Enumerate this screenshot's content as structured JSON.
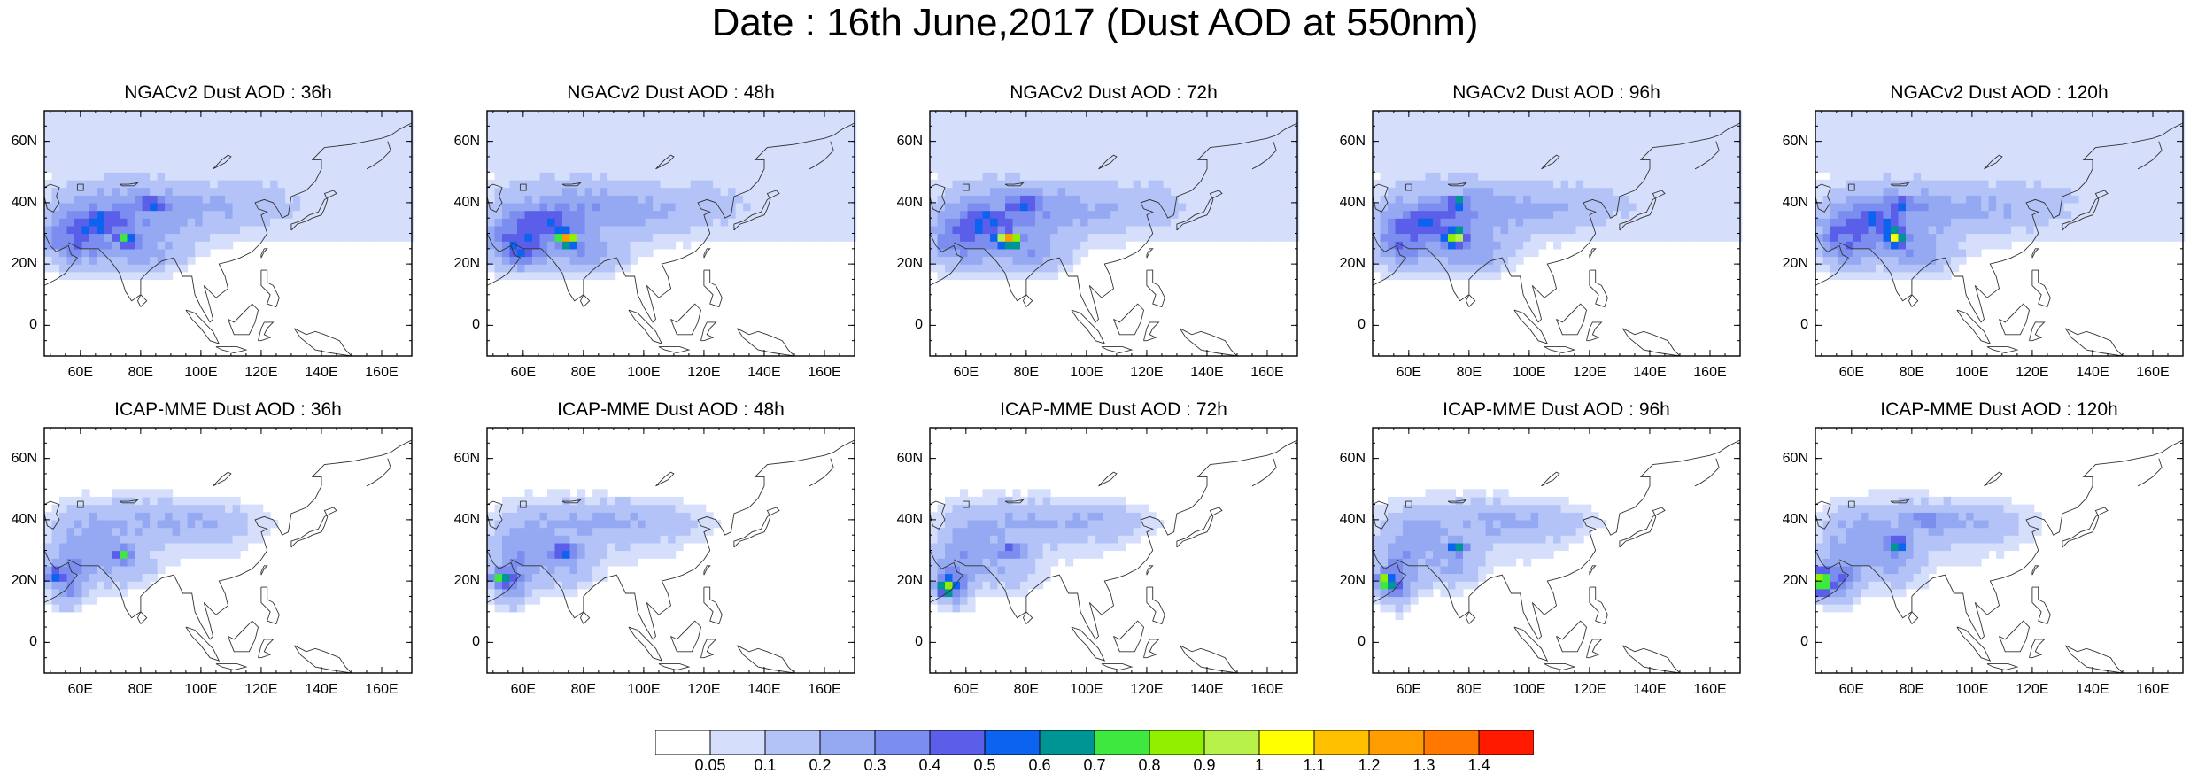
{
  "title": "Date : 16th June,2017 (Dust AOD at 550nm)",
  "lat_labels": [
    "60N",
    "40N",
    "20N",
    "0"
  ],
  "lat_values": [
    60,
    40,
    20,
    0
  ],
  "lon_labels": [
    "60E",
    "80E",
    "100E",
    "120E",
    "140E",
    "160E"
  ],
  "lon_values": [
    60,
    80,
    100,
    120,
    140,
    160
  ],
  "map_extent": {
    "lon_min": 48,
    "lon_max": 170,
    "lat_min": -10,
    "lat_max": 70
  },
  "panels": [
    {
      "title": "NGACv2 Dust AOD : 36h",
      "model": "NGACv2",
      "forecast_hour": "36h"
    },
    {
      "title": "NGACv2 Dust AOD : 48h",
      "model": "NGACv2",
      "forecast_hour": "48h"
    },
    {
      "title": "NGACv2 Dust AOD : 72h",
      "model": "NGACv2",
      "forecast_hour": "72h"
    },
    {
      "title": "NGACv2 Dust AOD : 96h",
      "model": "NGACv2",
      "forecast_hour": "96h"
    },
    {
      "title": "NGACv2 Dust AOD : 120h",
      "model": "NGACv2",
      "forecast_hour": "120h"
    },
    {
      "title": "ICAP-MME Dust AOD : 36h",
      "model": "ICAP-MME",
      "forecast_hour": "36h"
    },
    {
      "title": "ICAP-MME Dust AOD : 48h",
      "model": "ICAP-MME",
      "forecast_hour": "48h"
    },
    {
      "title": "ICAP-MME Dust AOD : 72h",
      "model": "ICAP-MME",
      "forecast_hour": "72h"
    },
    {
      "title": "ICAP-MME Dust AOD : 96h",
      "model": "ICAP-MME",
      "forecast_hour": "96h"
    },
    {
      "title": "ICAP-MME Dust AOD : 120h",
      "model": "ICAP-MME",
      "forecast_hour": "120h"
    }
  ],
  "colorbar": {
    "labels": [
      "0.05",
      "0.1",
      "0.2",
      "0.3",
      "0.4",
      "0.5",
      "0.6",
      "0.7",
      "0.8",
      "0.9",
      "1",
      "1.1",
      "1.2",
      "1.3",
      "1.4"
    ],
    "colors": [
      "#ffffff",
      "#d5dffc",
      "#b3c3f7",
      "#95a9f3",
      "#7b8ef0",
      "#5a5ee8",
      "#0b63ef",
      "#009595",
      "#3ee83e",
      "#90f000",
      "#b8f04a",
      "#ffff00",
      "#ffc000",
      "#ff9c00",
      "#ff7800",
      "#ff1a00"
    ]
  }
}
